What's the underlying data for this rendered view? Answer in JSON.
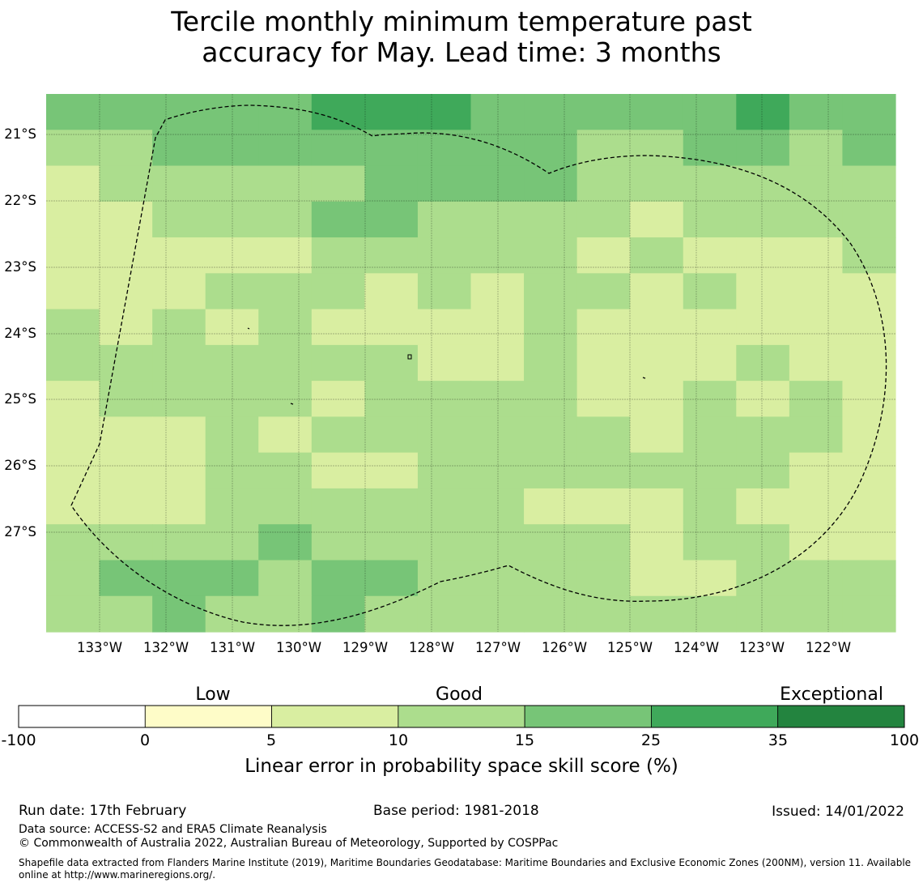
{
  "title": {
    "line1": "Tercile monthly minimum temperature past",
    "line2": "accuracy for May. Lead time: 3 months"
  },
  "map": {
    "lon_labels": [
      "133°W",
      "132°W",
      "131°W",
      "130°W",
      "129°W",
      "128°W",
      "127°W",
      "126°W",
      "125°W",
      "124°W",
      "123°W",
      "122°W"
    ],
    "lat_labels": [
      "21°S",
      "22°S",
      "23°S",
      "24°S",
      "25°S",
      "26°S",
      "27°S"
    ],
    "grid_levels": [
      [
        4,
        4,
        4,
        4,
        4,
        5,
        5,
        5,
        4,
        4,
        4,
        4,
        4,
        5,
        4,
        4
      ],
      [
        3,
        3,
        4,
        4,
        4,
        4,
        4,
        4,
        4,
        4,
        3,
        3,
        4,
        4,
        3,
        4
      ],
      [
        2,
        3,
        3,
        3,
        3,
        3,
        4,
        4,
        4,
        4,
        3,
        3,
        3,
        3,
        3,
        3
      ],
      [
        2,
        2,
        3,
        3,
        3,
        4,
        4,
        3,
        3,
        3,
        3,
        2,
        3,
        3,
        3,
        3
      ],
      [
        2,
        2,
        2,
        2,
        2,
        3,
        3,
        3,
        3,
        3,
        2,
        3,
        2,
        2,
        2,
        3
      ],
      [
        2,
        2,
        2,
        3,
        3,
        3,
        2,
        3,
        2,
        3,
        3,
        2,
        3,
        2,
        2,
        2
      ],
      [
        3,
        2,
        3,
        2,
        3,
        2,
        2,
        2,
        2,
        3,
        2,
        2,
        2,
        2,
        2,
        2
      ],
      [
        3,
        3,
        3,
        3,
        3,
        3,
        3,
        2,
        2,
        3,
        2,
        2,
        2,
        3,
        2,
        2
      ],
      [
        2,
        3,
        3,
        3,
        3,
        2,
        3,
        3,
        3,
        3,
        2,
        2,
        3,
        2,
        3,
        2
      ],
      [
        2,
        2,
        2,
        3,
        2,
        3,
        3,
        3,
        3,
        3,
        3,
        2,
        3,
        3,
        3,
        2
      ],
      [
        2,
        2,
        2,
        3,
        3,
        2,
        2,
        3,
        3,
        3,
        3,
        3,
        3,
        3,
        2,
        2
      ],
      [
        2,
        2,
        2,
        3,
        3,
        3,
        3,
        3,
        3,
        2,
        2,
        2,
        3,
        2,
        2,
        2
      ],
      [
        3,
        3,
        3,
        3,
        4,
        3,
        3,
        3,
        3,
        3,
        3,
        2,
        3,
        3,
        2,
        2
      ],
      [
        3,
        4,
        4,
        4,
        3,
        4,
        4,
        3,
        3,
        3,
        3,
        2,
        2,
        3,
        3,
        3
      ],
      [
        3,
        3,
        4,
        3,
        3,
        4,
        3,
        3,
        3,
        3,
        3,
        3,
        3,
        3,
        3,
        3
      ]
    ]
  },
  "legend": {
    "category_labels": [
      "Low",
      "Good",
      "Exceptional"
    ],
    "tick_labels": [
      "-100",
      "0",
      "5",
      "10",
      "15",
      "25",
      "35",
      "100"
    ],
    "colors": [
      "#ffffff",
      "#fefcc8",
      "#d9eea1",
      "#acdd8d",
      "#77c577",
      "#3fa95a",
      "#23843f"
    ],
    "axis_label": "Linear error in probability space skill score (%)"
  },
  "footer": {
    "run_date": "Run date: 17th February",
    "base_period": "Base period: 1981-2018",
    "issued": "Issued: 14/01/2022",
    "data_source": "Data source: ACCESS-S2 and ERA5 Climate Reanalysis",
    "copyright": "© Commonwealth of Australia 2022, Australian Bureau of Meteorology, Supported by COSPPac",
    "shapefile_line1": "Shapefile data extracted from Flanders Marine Institute (2019), Maritime Boundaries Geodatabase: Maritime Boundaries and Exclusive Economic Zones (200NM), version 11. Available",
    "shapefile_line2": "online at http://www.marineregions.org/."
  }
}
